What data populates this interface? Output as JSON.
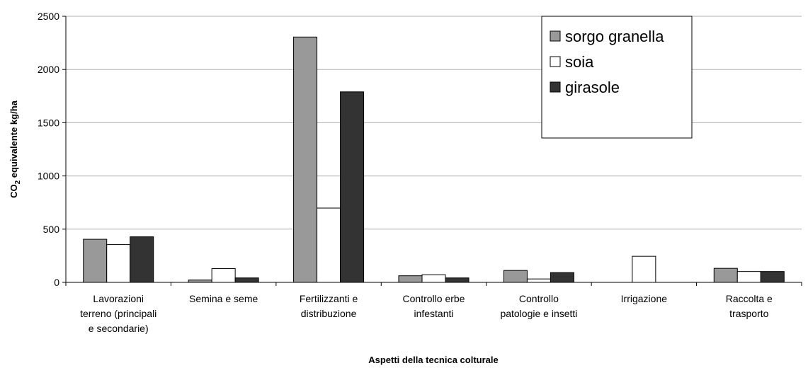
{
  "chart_data": {
    "type": "bar",
    "categories": [
      [
        "Lavorazioni",
        "terreno (principali",
        "e secondarie)"
      ],
      [
        "Semina e seme"
      ],
      [
        "Fertilizzanti e",
        "distribuzione"
      ],
      [
        "Controllo erbe",
        "infestanti"
      ],
      [
        "Controllo",
        "patologie e insetti"
      ],
      [
        "Irrigazione"
      ],
      [
        "Raccolta e",
        "trasporto"
      ]
    ],
    "series": [
      {
        "name": "sorgo granella",
        "color": "#999999",
        "values": [
          405,
          22,
          2305,
          62,
          112,
          0,
          132
        ]
      },
      {
        "name": "soia",
        "color": "#ffffff",
        "values": [
          355,
          130,
          698,
          72,
          32,
          245,
          102
        ]
      },
      {
        "name": "girasole",
        "color": "#333333",
        "values": [
          428,
          42,
          1790,
          42,
          92,
          0,
          102
        ]
      }
    ],
    "ylim": [
      0,
      2500
    ],
    "yticks": [
      "0",
      "500",
      "1000",
      "1500",
      "2000",
      "2500"
    ],
    "ylabel_main": "CO",
    "ylabel_sub": "2",
    "ylabel_rest": " equivalente kg/ha",
    "xlabel": "Aspetti della tecnica colturale",
    "grid": true,
    "legend_position": "top-right"
  }
}
